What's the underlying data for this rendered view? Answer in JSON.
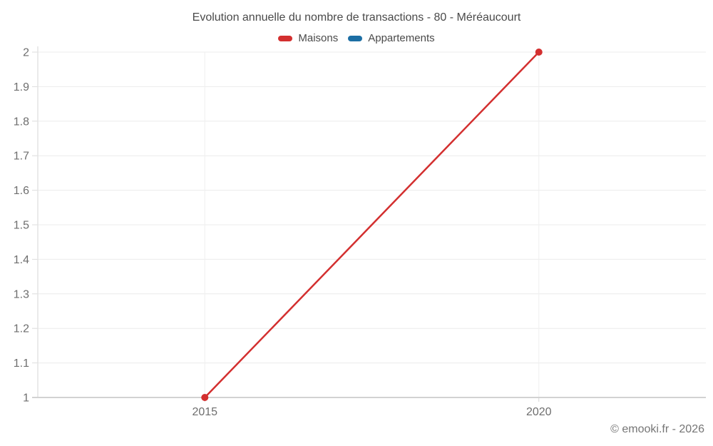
{
  "header": {
    "title": "Evolution annuelle du nombre de transactions - 80 - Méréaucourt"
  },
  "legend": {
    "items": [
      {
        "label": "Maisons",
        "color": "#d32f2f"
      },
      {
        "label": "Appartements",
        "color": "#1c6ea4"
      }
    ]
  },
  "chart_data": {
    "type": "line",
    "title": "Evolution annuelle du nombre de transactions - 80 - Méréaucourt",
    "categories": [
      "2015",
      "2020"
    ],
    "series": [
      {
        "name": "Maisons",
        "color": "#d32f2f",
        "values": [
          1,
          2
        ]
      },
      {
        "name": "Appartements",
        "color": "#1c6ea4",
        "values": []
      }
    ],
    "ylim": [
      1,
      2
    ],
    "ytick_step": 0.1,
    "ytick_labels": [
      "1",
      "1.1",
      "1.2",
      "1.3",
      "1.4",
      "1.5",
      "1.6",
      "1.7",
      "1.8",
      "1.9",
      "2"
    ],
    "grid": true,
    "legend_position": "top"
  },
  "footer": {
    "credit": "© emooki.fr - 2026"
  }
}
